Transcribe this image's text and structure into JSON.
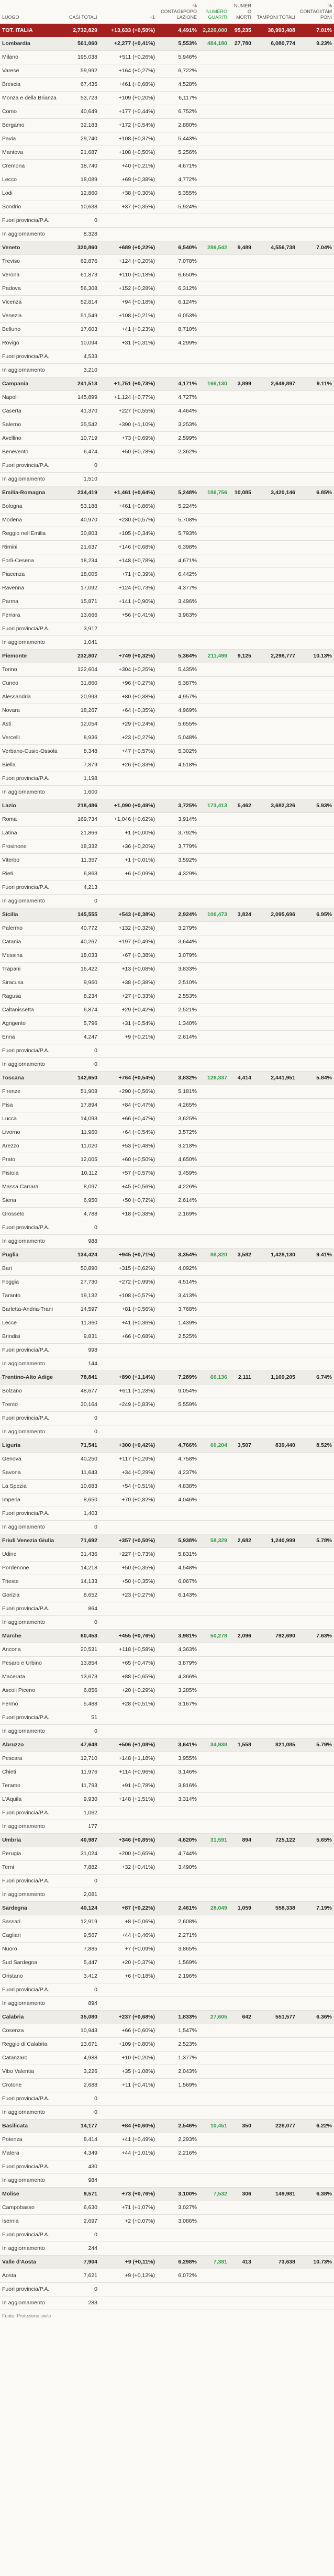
{
  "table": {
    "header": [
      "LUOGO",
      "CASI TOTALI",
      "+1",
      "% CONTAGI/POPOLAZIONE",
      "NUMERO GUARITI",
      "NUMERO MORTI",
      "TAMPONI TOTALI",
      "% CONTAGI/TAMPONI"
    ],
    "rows": [
      [
        "TOT. ITALIA",
        "2,732,829",
        "+13,633 (+0,50%)",
        "4,491%",
        "2,226,000",
        "95,235",
        "38,993,408",
        "7.01%"
      ],
      [
        "Lombardia",
        "561,060",
        "+2,277 (+0,41%)",
        "5,553%",
        "484,180",
        "27,780",
        "6,080,774",
        "9.23%"
      ],
      [
        "Milano",
        "195,038",
        "+511 (+0,26%)",
        "5,946%"
      ],
      [
        "Varese",
        "59,992",
        "+164 (+0,27%)",
        "6,722%"
      ],
      [
        "Brescia",
        "67,435",
        "+461 (+0,68%)",
        "4,528%"
      ],
      [
        "Monza e della Brianza",
        "53,723",
        "+109 (+0,20%)",
        "6,117%"
      ],
      [
        "Como",
        "40,649",
        "+177 (+0,44%)",
        "6,752%"
      ],
      [
        "Bergamo",
        "32,183",
        "+172 (+0,54%)",
        "2,880%"
      ],
      [
        "Pavia",
        "29,740",
        "+108 (+0,37%)",
        "5,443%"
      ],
      [
        "Mantova",
        "21,687",
        "+108 (+0,50%)",
        "5,256%"
      ],
      [
        "Cremona",
        "18,740",
        "+40 (+0,21%)",
        "4,671%"
      ],
      [
        "Lecco",
        "18,089",
        "+69 (+0,38%)",
        "4,772%"
      ],
      [
        "Lodi",
        "12,860",
        "+38 (+0,30%)",
        "5,355%"
      ],
      [
        "Sondrio",
        "10,638",
        "+37 (+0,35%)",
        "5,924%"
      ],
      [
        "Fuori provincia/P.A.",
        "0"
      ],
      [
        "In aggiornamento",
        "8,328"
      ],
      [
        "Veneto",
        "320,860",
        "+689 (+0,22%)",
        "6,540%",
        "286,542",
        "9,489",
        "4,556,738",
        "7.04%"
      ],
      [
        "Treviso",
        "62,876",
        "+124 (+0,20%)",
        "7,078%"
      ],
      [
        "Verona",
        "61,873",
        "+110 (+0,18%)",
        "6,650%"
      ],
      [
        "Padova",
        "56,308",
        "+152 (+0,28%)",
        "6,312%"
      ],
      [
        "Vicenza",
        "52,814",
        "+94 (+0,18%)",
        "6,124%"
      ],
      [
        "Venezia",
        "51,549",
        "+108 (+0,21%)",
        "6,053%"
      ],
      [
        "Belluno",
        "17,603",
        "+41 (+0,23%)",
        "8,710%"
      ],
      [
        "Rovigo",
        "10,094",
        "+31 (+0,31%)",
        "4,299%"
      ],
      [
        "Fuori provincia/P.A.",
        "4,533"
      ],
      [
        "In aggiornamento",
        "3,210"
      ],
      [
        "Campania",
        "241,513",
        "+1,751 (+0,73%)",
        "4,171%",
        "166,130",
        "3,899",
        "2,649,897",
        "9.11%"
      ],
      [
        "Napoli",
        "145,899",
        "+1,124 (+0,77%)",
        "4,727%"
      ],
      [
        "Caserta",
        "41,370",
        "+227 (+0,55%)",
        "4,464%"
      ],
      [
        "Salerno",
        "35,542",
        "+390 (+1,10%)",
        "3,253%"
      ],
      [
        "Avellino",
        "10,719",
        "+73 (+0,69%)",
        "2,599%"
      ],
      [
        "Benevento",
        "6,474",
        "+50 (+0,78%)",
        "2,362%"
      ],
      [
        "Fuori provincia/P.A.",
        "0"
      ],
      [
        "In aggiornamento",
        "1,510"
      ],
      [
        "Emilia-Romagna",
        "234,419",
        "+1,461 (+0,64%)",
        "5,248%",
        "186,756",
        "10,085",
        "3,420,146",
        "6.85%"
      ],
      [
        "Bologna",
        "53,188",
        "+461 (+0,86%)",
        "5,224%"
      ],
      [
        "Modena",
        "40,970",
        "+230 (+0,57%)",
        "5,708%"
      ],
      [
        "Reggio nell'Emilia",
        "30,803",
        "+105 (+0,34%)",
        "5,793%"
      ],
      [
        "Rimini",
        "21,637",
        "+146 (+0,68%)",
        "6,398%"
      ],
      [
        "Forlì-Cesena",
        "18,234",
        "+148 (+0,78%)",
        "4,671%"
      ],
      [
        "Piacenza",
        "18,005",
        "+71 (+0,39%)",
        "6,442%"
      ],
      [
        "Ravenna",
        "17,092",
        "+124 (+0,73%)",
        "4,377%"
      ],
      [
        "Parma",
        "15,871",
        "+141 (+0,90%)",
        "3,496%"
      ],
      [
        "Ferrara",
        "13,666",
        "+56 (+0,41%)",
        "3,963%"
      ],
      [
        "Fuori provincia/P.A.",
        "3,912"
      ],
      [
        "In aggiornamento",
        "1,041"
      ],
      [
        "Piemonte",
        "232,807",
        "+749 (+0,32%)",
        "5,364%",
        "211,499",
        "9,125",
        "2,298,777",
        "10.13%"
      ],
      [
        "Torino",
        "122,604",
        "+304 (+0,25%)",
        "5,435%"
      ],
      [
        "Cuneo",
        "31,860",
        "+96 (+0,27%)",
        "5,387%"
      ],
      [
        "Alessandria",
        "20,993",
        "+80 (+0,38%)",
        "4,957%"
      ],
      [
        "Novara",
        "18,267",
        "+64 (+0,35%)",
        "4,969%"
      ],
      [
        "Asti",
        "12,054",
        "+29 (+0,24%)",
        "5,655%"
      ],
      [
        "Vercelli",
        "8,936",
        "+23 (+0,27%)",
        "5,048%"
      ],
      [
        "Verbano-Cusio-Ossola",
        "8,348",
        "+47 (+0,57%)",
        "5,302%"
      ],
      [
        "Biella",
        "7,879",
        "+26 (+0,33%)",
        "4,518%"
      ],
      [
        "Fuori provincia/P.A.",
        "1,198"
      ],
      [
        "In aggiornamento",
        "1,600"
      ],
      [
        "Lazio",
        "218,486",
        "+1,090 (+0,49%)",
        "3,725%",
        "173,413",
        "5,462",
        "3,682,326",
        "5.93%"
      ],
      [
        "Roma",
        "169,734",
        "+1,046 (+0,62%)",
        "3,914%"
      ],
      [
        "Latina",
        "21,866",
        "+1 (+0,00%)",
        "3,792%"
      ],
      [
        "Frosinone",
        "18,332",
        "+36 (+0,20%)",
        "3,779%"
      ],
      [
        "Viterbo",
        "11,357",
        "+1 (+0,01%)",
        "3,592%"
      ],
      [
        "Rieti",
        "6,863",
        "+6 (+0,09%)",
        "4,329%"
      ],
      [
        "Fuori provincia/P.A.",
        "4,213"
      ],
      [
        "In aggiornamento",
        "0"
      ],
      [
        "Sicilia",
        "145,555",
        "+543 (+0,38%)",
        "2,924%",
        "106,473",
        "3,824",
        "2,095,696",
        "6.95%"
      ],
      [
        "Palermo",
        "40,772",
        "+132 (+0,32%)",
        "3,279%"
      ],
      [
        "Catania",
        "40,267",
        "+197 (+0,49%)",
        "3,644%"
      ],
      [
        "Messina",
        "18,033",
        "+67 (+0,38%)",
        "3,079%"
      ],
      [
        "Trapani",
        "16,422",
        "+13 (+0,08%)",
        "3,833%"
      ],
      [
        "Siracusa",
        "9,960",
        "+38 (+0,38%)",
        "2,510%"
      ],
      [
        "Ragusa",
        "8,234",
        "+27 (+0,33%)",
        "2,553%"
      ],
      [
        "Caltanissetta",
        "6,874",
        "+29 (+0,42%)",
        "2,521%"
      ],
      [
        "Agrigento",
        "5,796",
        "+31 (+0,54%)",
        "1,340%"
      ],
      [
        "Enna",
        "4,247",
        "+9 (+0,21%)",
        "2,614%"
      ],
      [
        "Fuori provincia/P.A.",
        "0"
      ],
      [
        "In aggiornamento",
        "0"
      ],
      [
        "Toscana",
        "142,650",
        "+764 (+0,54%)",
        "3,832%",
        "126,337",
        "4,414",
        "2,441,951",
        "5.84%"
      ],
      [
        "Firenze",
        "51,908",
        "+290 (+0,56%)",
        "5,181%"
      ],
      [
        "Pisa",
        "17,894",
        "+84 (+0,47%)",
        "4,265%"
      ],
      [
        "Lucca",
        "14,093",
        "+66 (+0,47%)",
        "3,625%"
      ],
      [
        "Livorno",
        "11,960",
        "+64 (+0,54%)",
        "3,572%"
      ],
      [
        "Arezzo",
        "11,020",
        "+53 (+0,48%)",
        "3,218%"
      ],
      [
        "Prato",
        "12,005",
        "+60 (+0,50%)",
        "4,650%"
      ],
      [
        "Pistoia",
        "10,112",
        "+57 (+0,57%)",
        "3,459%"
      ],
      [
        "Massa Carrara",
        "8,097",
        "+45 (+0,56%)",
        "4,226%"
      ],
      [
        "Siena",
        "6,950",
        "+50 (+0,72%)",
        "2,614%"
      ],
      [
        "Grosseto",
        "4,788",
        "+18 (+0,38%)",
        "2,169%"
      ],
      [
        "Fuori provincia/P.A.",
        "0"
      ],
      [
        "In aggiornamento",
        "988"
      ],
      [
        "Puglia",
        "134,424",
        "+945 (+0,71%)",
        "3,354%",
        "88,320",
        "3,582",
        "1,428,130",
        "9.41%"
      ],
      [
        "Bari",
        "50,890",
        "+315 (+0,62%)",
        "4,092%"
      ],
      [
        "Foggia",
        "27,730",
        "+272 (+0,99%)",
        "4,514%"
      ],
      [
        "Taranto",
        "19,132",
        "+108 (+0,57%)",
        "3,413%"
      ],
      [
        "Barletta-Andria-Trani",
        "14,597",
        "+81 (+0,56%)",
        "3,768%"
      ],
      [
        "Lecce",
        "11,360",
        "+41 (+0,36%)",
        "1,439%"
      ],
      [
        "Brindisi",
        "9,831",
        "+66 (+0,68%)",
        "2,525%"
      ],
      [
        "Fuori provincia/P.A.",
        "998"
      ],
      [
        "In aggiornamento",
        "144"
      ],
      [
        "Trentino-Alto Adige",
        "78,841",
        "+890 (+1,14%)",
        "7,289%",
        "66,136",
        "2,111",
        "1,169,205",
        "6.74%"
      ],
      [
        "Bolzano",
        "48,677",
        "+611 (+1,28%)",
        "9,054%"
      ],
      [
        "Trento",
        "30,164",
        "+249 (+0,83%)",
        "5,559%"
      ],
      [
        "Fuori provincia/P.A.",
        "0"
      ],
      [
        "In aggiornamento",
        "0"
      ],
      [
        "Liguria",
        "71,541",
        "+300 (+0,42%)",
        "4,766%",
        "60,204",
        "3,507",
        "839,440",
        "8.52%"
      ],
      [
        "Genova",
        "40,250",
        "+117 (+0,29%)",
        "4,758%"
      ],
      [
        "Savona",
        "11,643",
        "+34 (+0,29%)",
        "4,237%"
      ],
      [
        "La Spezia",
        "10,683",
        "+54 (+0,51%)",
        "4,838%"
      ],
      [
        "Imperia",
        "8,650",
        "+70 (+0,82%)",
        "4,046%"
      ],
      [
        "Fuori provincia/P.A.",
        "1,403"
      ],
      [
        "In aggiornamento",
        "0"
      ],
      [
        "Friuli Venezia Giulia",
        "71,692",
        "+357 (+0,50%)",
        "5,938%",
        "58,329",
        "2,682",
        "1,240,999",
        "5.78%"
      ],
      [
        "Udine",
        "31,436",
        "+227 (+0,73%)",
        "5,831%"
      ],
      [
        "Pordenone",
        "14,218",
        "+50 (+0,35%)",
        "4,548%"
      ],
      [
        "Trieste",
        "14,133",
        "+50 (+0,35%)",
        "6,067%"
      ],
      [
        "Gorizia",
        "8,652",
        "+23 (+0,27%)",
        "6,143%"
      ],
      [
        "Fuori provincia/P.A.",
        "864"
      ],
      [
        "In aggiornamento",
        "0"
      ],
      [
        "Marche",
        "60,453",
        "+455 (+0,76%)",
        "3,981%",
        "50,278",
        "2,096",
        "792,690",
        "7.63%"
      ],
      [
        "Ancona",
        "20,531",
        "+118 (+0,58%)",
        "4,363%"
      ],
      [
        "Pesaro e Urbino",
        "13,854",
        "+65 (+0,47%)",
        "3,879%"
      ],
      [
        "Macerata",
        "13,673",
        "+88 (+0,65%)",
        "4,366%"
      ],
      [
        "Ascoli Piceno",
        "6,856",
        "+20 (+0,29%)",
        "3,285%"
      ],
      [
        "Fermo",
        "5,488",
        "+28 (+0,51%)",
        "3,167%"
      ],
      [
        "Fuori provincia/P.A.",
        "51"
      ],
      [
        "In aggiornamento",
        "0"
      ],
      [
        "Abruzzo",
        "47,648",
        "+506 (+1,08%)",
        "3,641%",
        "34,938",
        "1,558",
        "821,085",
        "5.79%"
      ],
      [
        "Pescara",
        "12,710",
        "+148 (+1,18%)",
        "3,955%"
      ],
      [
        "Chieti",
        "11,976",
        "+114 (+0,96%)",
        "3,146%"
      ],
      [
        "Teramo",
        "11,793",
        "+91 (+0,78%)",
        "3,816%"
      ],
      [
        "L'Aquila",
        "9,930",
        "+148 (+1,51%)",
        "3,314%"
      ],
      [
        "Fuori provincia/P.A.",
        "1,062"
      ],
      [
        "In aggiornamento",
        "177"
      ],
      [
        "Umbria",
        "40,987",
        "+346 (+0,85%)",
        "4,620%",
        "31,591",
        "894",
        "725,122",
        "5.65%"
      ],
      [
        "Perugia",
        "31,024",
        "+200 (+0,65%)",
        "4,744%"
      ],
      [
        "Terni",
        "7,882",
        "+32 (+0,41%)",
        "3,490%"
      ],
      [
        "Fuori provincia/P.A.",
        "0"
      ],
      [
        "In aggiornamento",
        "2,081"
      ],
      [
        "Sardegna",
        "40,124",
        "+87 (+0,22%)",
        "2,461%",
        "28,049",
        "1,059",
        "558,338",
        "7.19%"
      ],
      [
        "Sassari",
        "12,919",
        "+8 (+0,06%)",
        "2,608%"
      ],
      [
        "Cagliari",
        "9,567",
        "+44 (+0,46%)",
        "2,271%"
      ],
      [
        "Nuoro",
        "7,885",
        "+7 (+0,09%)",
        "3,865%"
      ],
      [
        "Sud Sardegna",
        "5,447",
        "+20 (+0,37%)",
        "1,569%"
      ],
      [
        "Oristano",
        "3,412",
        "+6 (+0,18%)",
        "2,196%"
      ],
      [
        "Fuori provincia/P.A.",
        "0"
      ],
      [
        "In aggiornamento",
        "894"
      ],
      [
        "Calabria",
        "35,080",
        "+237 (+0,68%)",
        "1,833%",
        "27,605",
        "642",
        "551,577",
        "6.36%"
      ],
      [
        "Cosenza",
        "10,943",
        "+66 (+0,60%)",
        "1,547%"
      ],
      [
        "Reggio di Calabria",
        "13,671",
        "+109 (+0,80%)",
        "2,523%"
      ],
      [
        "Catanzaro",
        "4,988",
        "+10 (+0,20%)",
        "1,377%"
      ],
      [
        "Vibo Valentia",
        "3,226",
        "+35 (+1,08%)",
        "2,043%"
      ],
      [
        "Crotone",
        "2,688",
        "+11 (+0,41%)",
        "1,569%"
      ],
      [
        "Fuori provincia/P.A.",
        "0"
      ],
      [
        "In aggiornamento",
        "0"
      ],
      [
        "Basilicata",
        "14,177",
        "+84 (+0,60%)",
        "2,546%",
        "10,451",
        "350",
        "228,077",
        "6.22%"
      ],
      [
        "Potenza",
        "8,414",
        "+41 (+0,49%)",
        "2,293%"
      ],
      [
        "Matera",
        "4,349",
        "+44 (+1,01%)",
        "2,216%"
      ],
      [
        "Fuori provincia/P.A.",
        "430"
      ],
      [
        "In aggiornamento",
        "984"
      ],
      [
        "Molise",
        "9,571",
        "+73 (+0,76%)",
        "3,100%",
        "7,532",
        "306",
        "149,981",
        "6.38%"
      ],
      [
        "Campobasso",
        "6,630",
        "+71 (+1,07%)",
        "3,027%"
      ],
      [
        "Isernia",
        "2,697",
        "+2 (+0,07%)",
        "3,086%"
      ],
      [
        "Fuori provincia/P.A.",
        "0"
      ],
      [
        "In aggiornamento",
        "244"
      ],
      [
        "Valle d'Aosta",
        "7,904",
        "+9 (+0,11%)",
        "6,298%",
        "7,381",
        "413",
        "73,638",
        "10.73%"
      ],
      [
        "Aosta",
        "7,621",
        "+9 (+0,12%)",
        "6,072%"
      ],
      [
        "Fuori provincia/P.A.",
        "0"
      ],
      [
        "In aggiornamento",
        "283"
      ]
    ],
    "footer": "Fonte: Protezione civile"
  }
}
